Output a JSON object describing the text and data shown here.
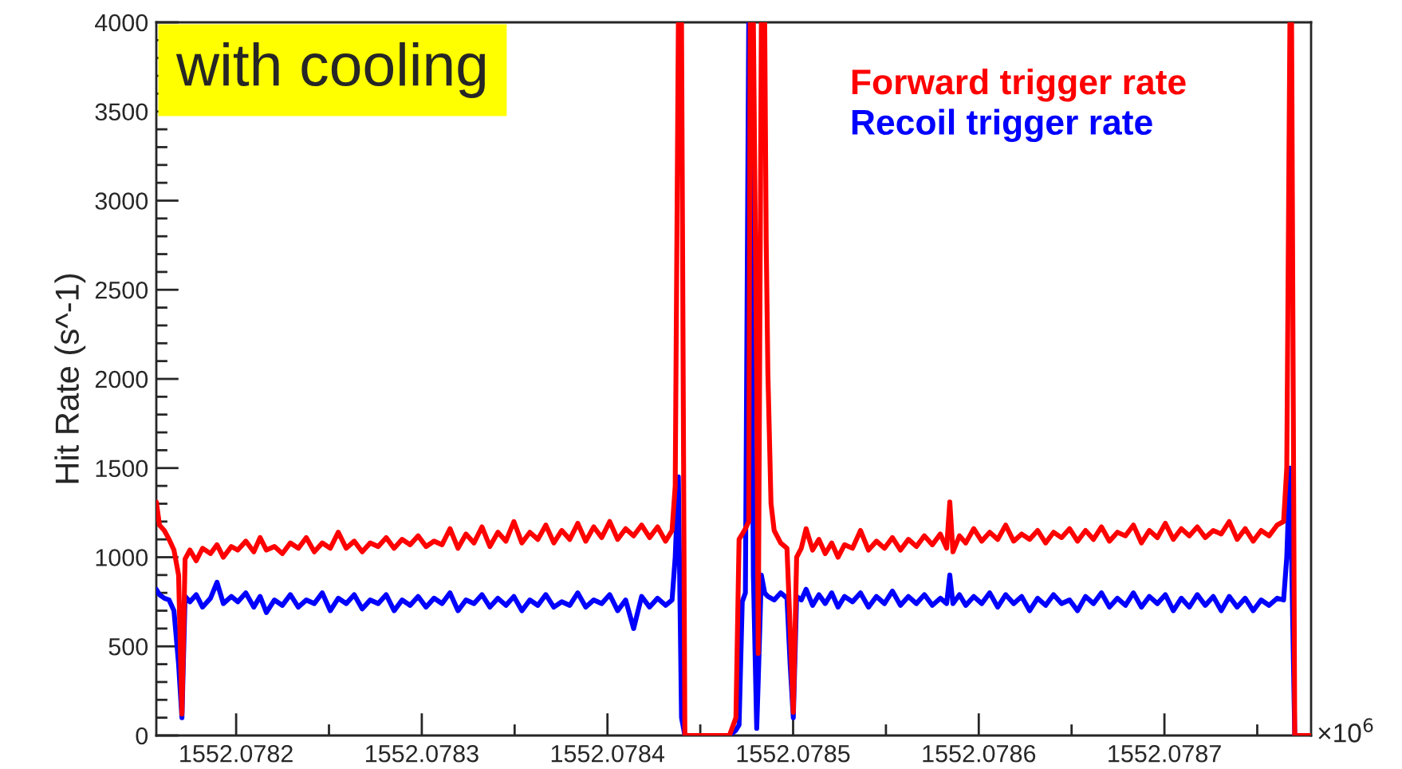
{
  "chart_data": {
    "type": "line",
    "ylabel": "Hit Rate (s^-1)",
    "annotations": [
      "with cooling",
      "×10$^{6}$"
    ],
    "x": [
      1552.078157,
      1552.0781587,
      1552.0781613,
      1552.0781639,
      1552.0781665,
      1552.078169,
      1552.0781708,
      1552.0781725,
      1552.0781751,
      1552.0781785,
      1552.0781819,
      1552.0781862,
      1552.0781897,
      1552.0781931,
      1552.0781974,
      1552.0782009,
      1552.0782052,
      1552.0782095,
      1552.0782129,
      1552.0782163,
      1552.0782206,
      1552.0782249,
      1552.0782292,
      1552.0782335,
      1552.0782378,
      1552.0782421,
      1552.0782464,
      1552.0782507,
      1552.078255,
      1552.0782593,
      1552.0782636,
      1552.0782679,
      1552.0782722,
      1552.0782765,
      1552.0782808,
      1552.0782851,
      1552.0782894,
      1552.0782937,
      1552.078298,
      1552.0783023,
      1552.0783066,
      1552.0783109,
      1552.0783152,
      1552.0783195,
      1552.0783238,
      1552.0783281,
      1552.0783324,
      1552.0783367,
      1552.078341,
      1552.0783453,
      1552.0783496,
      1552.0783539,
      1552.0783582,
      1552.0783625,
      1552.0783668,
      1552.0783711,
      1552.0783754,
      1552.0783797,
      1552.078384,
      1552.0783883,
      1552.0783926,
      1552.0783969,
      1552.0784012,
      1552.0784055,
      1552.0784098,
      1552.0784141,
      1552.0784184,
      1552.0784227,
      1552.078427,
      1552.0784313,
      1552.0784348,
      1552.0784365,
      1552.0784382,
      1552.0784399,
      1552.0784417,
      1552.0784657,
      1552.0784692,
      1552.0784709,
      1552.0784726,
      1552.0784743,
      1552.0784761,
      1552.0784769,
      1552.0784786,
      1552.0784804,
      1552.0784812,
      1552.0784829,
      1552.0784847,
      1552.0784855,
      1552.0784864,
      1552.0784881,
      1552.0784898,
      1552.0784933,
      1552.0784967,
      1552.0784984,
      1552.0785001,
      1552.0785019,
      1552.0785044,
      1552.078507,
      1552.0785105,
      1552.0785139,
      1552.0785173,
      1552.0785208,
      1552.0785242,
      1552.0785277,
      1552.078532,
      1552.0785363,
      1552.0785406,
      1552.0785449,
      1552.0785492,
      1552.0785535,
      1552.0785578,
      1552.0785621,
      1552.0785664,
      1552.0785707,
      1552.078575,
      1552.0785793,
      1552.0785827,
      1552.0785844,
      1552.0785861,
      1552.0785896,
      1552.078593,
      1552.0785973,
      1552.0786016,
      1552.0786059,
      1552.0786102,
      1552.0786145,
      1552.0786188,
      1552.0786231,
      1552.0786274,
      1552.0786317,
      1552.078636,
      1552.0786403,
      1552.0786446,
      1552.0786489,
      1552.0786532,
      1552.0786575,
      1552.0786618,
      1552.0786661,
      1552.0786704,
      1552.0786747,
      1552.078679,
      1552.0786833,
      1552.0786876,
      1552.0786919,
      1552.0786962,
      1552.0787005,
      1552.0787048,
      1552.0787091,
      1552.0787134,
      1552.0787177,
      1552.078722,
      1552.0787263,
      1552.0787306,
      1552.0787349,
      1552.0787392,
      1552.0787435,
      1552.0787478,
      1552.0787521,
      1552.0787564,
      1552.0787607,
      1552.0787642,
      1552.0787659,
      1552.0787676,
      1552.0787685,
      1552.0787702,
      1552.0787788
    ],
    "series": [
      {
        "name": "Forward trigger rate",
        "color": "#ff0000",
        "values": [
          1310,
          1180,
          1150,
          1100,
          1040,
          900,
          120,
          990,
          1040,
          980,
          1050,
          1020,
          1070,
          1000,
          1060,
          1040,
          1090,
          1030,
          1110,
          1040,
          1060,
          1020,
          1080,
          1050,
          1110,
          1030,
          1080,
          1050,
          1140,
          1050,
          1090,
          1030,
          1080,
          1060,
          1110,
          1050,
          1100,
          1070,
          1120,
          1060,
          1090,
          1070,
          1160,
          1050,
          1130,
          1080,
          1170,
          1060,
          1140,
          1090,
          1200,
          1080,
          1140,
          1100,
          1180,
          1080,
          1150,
          1100,
          1190,
          1090,
          1170,
          1110,
          1200,
          1100,
          1160,
          1120,
          1180,
          1110,
          1170,
          1090,
          1150,
          1400,
          4000,
          4000,
          0,
          0,
          100,
          1100,
          1130,
          1160,
          1200,
          4000,
          4000,
          2000,
          460,
          4000,
          4000,
          2780,
          2040,
          1300,
          1150,
          1080,
          1050,
          600,
          130,
          1000,
          1050,
          1160,
          1040,
          1100,
          1020,
          1080,
          1000,
          1070,
          1050,
          1150,
          1040,
          1090,
          1050,
          1110,
          1040,
          1100,
          1060,
          1120,
          1070,
          1130,
          1050,
          1310,
          1030,
          1120,
          1080,
          1160,
          1090,
          1140,
          1100,
          1180,
          1090,
          1130,
          1100,
          1150,
          1080,
          1140,
          1110,
          1160,
          1090,
          1150,
          1100,
          1170,
          1090,
          1140,
          1120,
          1180,
          1080,
          1150,
          1110,
          1190,
          1100,
          1160,
          1120,
          1170,
          1110,
          1150,
          1130,
          1200,
          1100,
          1160,
          1090,
          1150,
          1120,
          1180,
          1200,
          1500,
          4000,
          4000,
          0,
          0
        ]
      },
      {
        "name": "Recoil trigger rate",
        "color": "#0000ff",
        "values": [
          820,
          790,
          770,
          760,
          700,
          400,
          100,
          780,
          750,
          790,
          720,
          770,
          860,
          740,
          780,
          750,
          800,
          720,
          780,
          690,
          760,
          730,
          790,
          720,
          760,
          740,
          800,
          700,
          770,
          740,
          790,
          710,
          760,
          740,
          790,
          700,
          760,
          730,
          780,
          720,
          770,
          740,
          800,
          700,
          760,
          740,
          790,
          720,
          770,
          730,
          780,
          700,
          760,
          730,
          790,
          720,
          750,
          730,
          800,
          720,
          760,
          740,
          790,
          700,
          760,
          600,
          780,
          720,
          770,
          730,
          760,
          1000,
          1450,
          100,
          0,
          0,
          30,
          60,
          750,
          800,
          4000,
          4000,
          900,
          40,
          300,
          900,
          800,
          790,
          780,
          770,
          760,
          800,
          770,
          400,
          100,
          780,
          760,
          820,
          730,
          790,
          740,
          800,
          720,
          780,
          750,
          800,
          720,
          780,
          740,
          810,
          730,
          780,
          740,
          790,
          730,
          770,
          740,
          900,
          740,
          790,
          730,
          780,
          740,
          800,
          720,
          790,
          740,
          780,
          700,
          770,
          730,
          790,
          740,
          760,
          700,
          780,
          740,
          800,
          720,
          770,
          730,
          800,
          720,
          780,
          740,
          790,
          700,
          770,
          720,
          790,
          730,
          780,
          700,
          780,
          720,
          770,
          700,
          760,
          730,
          770,
          760,
          1000,
          1500,
          1000,
          0,
          0
        ]
      }
    ],
    "xlim": [
      1552.078157,
      1552.078779
    ],
    "xticks": [
      1552.0782,
      1552.0783,
      1552.0784,
      1552.0785,
      1552.0786,
      1552.0787
    ],
    "ylim": [
      0,
      4000
    ],
    "yticks": [
      0,
      500,
      1000,
      1500,
      2000,
      2500,
      3000,
      3500,
      4000
    ],
    "legend": "top right",
    "grid": false
  }
}
